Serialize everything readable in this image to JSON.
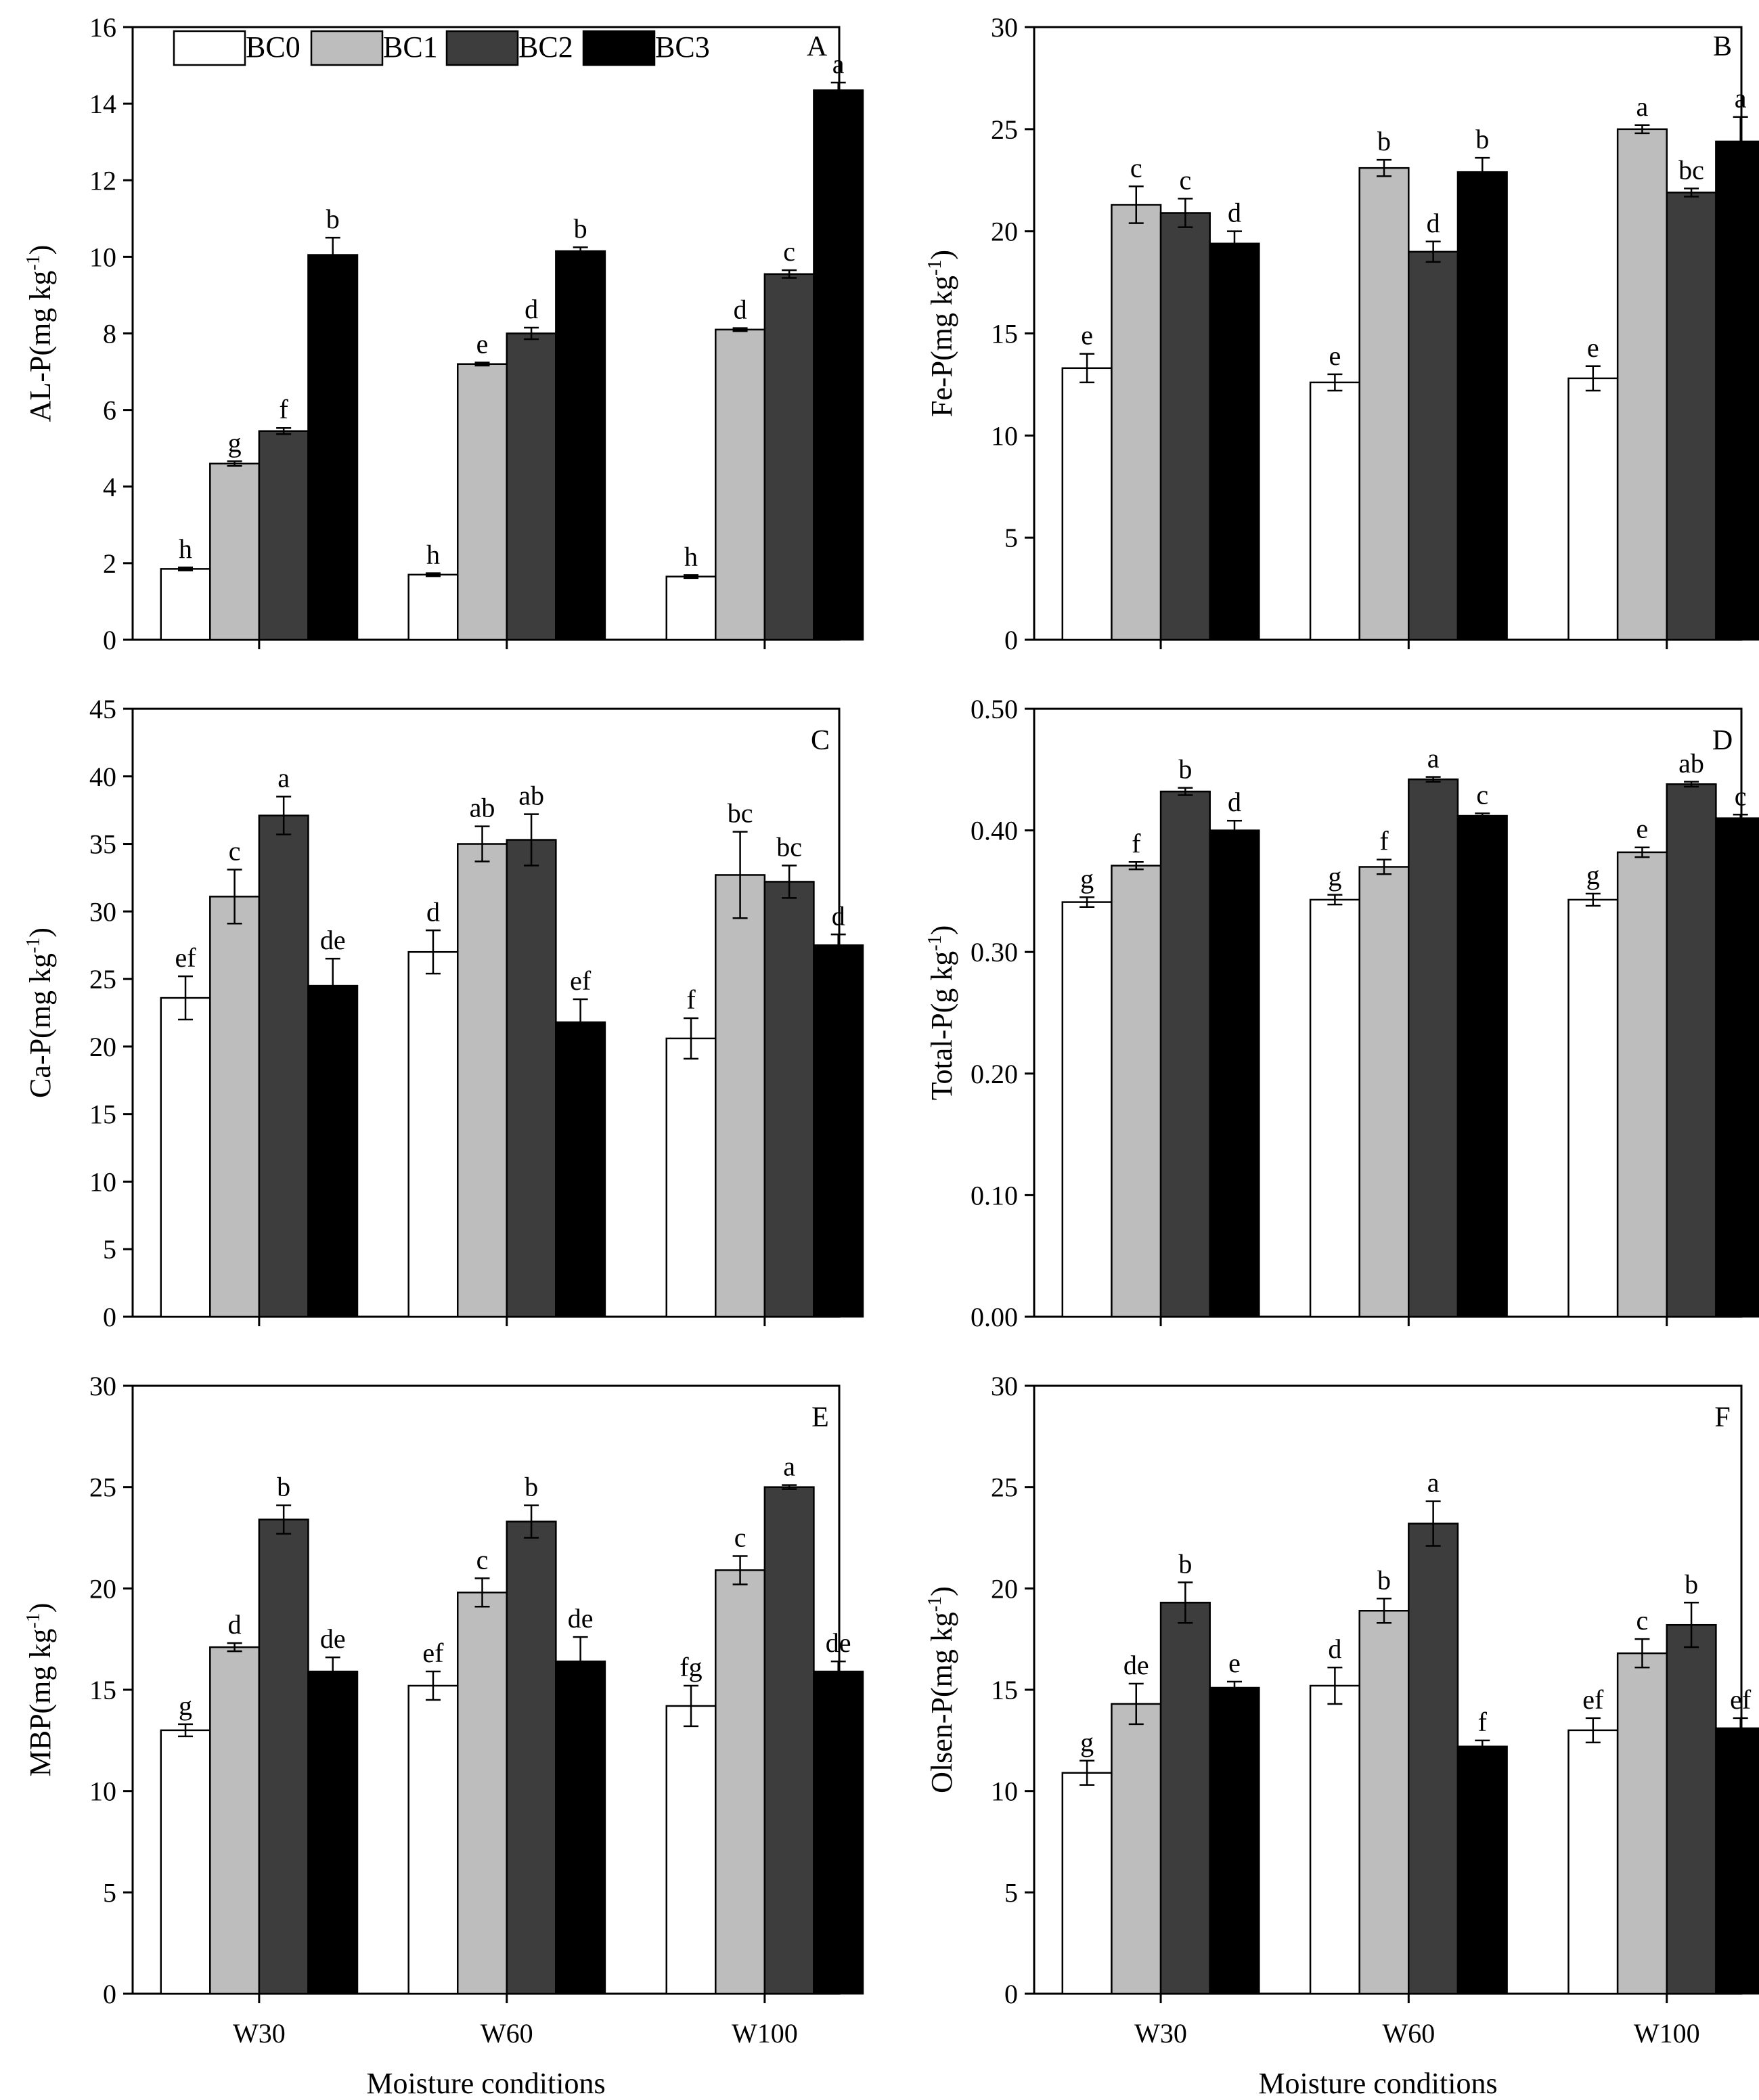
{
  "figure_title": "",
  "colors": {
    "BC0": "#ffffff",
    "BC1": "#bdbdbd",
    "BC2": "#3d3d3d",
    "BC3": "#000000",
    "axis": "#000000"
  },
  "legend": {
    "items": [
      "BC0",
      "BC1",
      "BC2",
      "BC3"
    ]
  },
  "xlabel": "Moisture conditions",
  "chart_data": [
    {
      "type": "bar",
      "panel": "A",
      "title": "A",
      "ylabel": "AL-P(mg kg-1)",
      "categories": [
        "W30",
        "W60",
        "W100"
      ],
      "ylim": [
        0,
        16
      ],
      "yticks": [
        "0",
        "2",
        "4",
        "6",
        "8",
        "10",
        "12",
        "14",
        "16"
      ],
      "series": [
        {
          "name": "BC0",
          "values": [
            1.85,
            1.7,
            1.65
          ],
          "errors": [
            0.04,
            0.04,
            0.04
          ],
          "letters": [
            "h",
            "h",
            "h"
          ]
        },
        {
          "name": "BC1",
          "values": [
            4.6,
            7.2,
            8.1
          ],
          "errors": [
            0.06,
            0.04,
            0.04
          ],
          "letters": [
            "g",
            "e",
            "d"
          ]
        },
        {
          "name": "BC2",
          "values": [
            5.45,
            8.0,
            9.55
          ],
          "errors": [
            0.08,
            0.15,
            0.1
          ],
          "letters": [
            "f",
            "d",
            "c"
          ]
        },
        {
          "name": "BC3",
          "values": [
            10.05,
            10.15,
            14.35
          ],
          "errors": [
            0.45,
            0.1,
            0.2
          ],
          "letters": [
            "b",
            "b",
            "a"
          ]
        }
      ]
    },
    {
      "type": "bar",
      "panel": "B",
      "title": "B",
      "ylabel": "Fe-P(mg kg-1)",
      "categories": [
        "W30",
        "W60",
        "W100"
      ],
      "ylim": [
        0,
        30
      ],
      "yticks": [
        "0",
        "5",
        "10",
        "15",
        "20",
        "25",
        "30"
      ],
      "series": [
        {
          "name": "BC0",
          "values": [
            13.3,
            12.6,
            12.8
          ],
          "errors": [
            0.7,
            0.4,
            0.6
          ],
          "letters": [
            "e",
            "e",
            "e"
          ]
        },
        {
          "name": "BC1",
          "values": [
            21.3,
            23.1,
            25.0
          ],
          "errors": [
            0.9,
            0.4,
            0.2
          ],
          "letters": [
            "c",
            "b",
            "a"
          ]
        },
        {
          "name": "BC2",
          "values": [
            20.9,
            19.0,
            21.9
          ],
          "errors": [
            0.7,
            0.5,
            0.2
          ],
          "letters": [
            "c",
            "d",
            "bc"
          ]
        },
        {
          "name": "BC3",
          "values": [
            19.4,
            22.9,
            24.4
          ],
          "errors": [
            0.6,
            0.7,
            1.2
          ],
          "letters": [
            "d",
            "b",
            "a"
          ]
        }
      ]
    },
    {
      "type": "bar",
      "panel": "C",
      "title": "C",
      "ylabel": "Ca-P(mg kg-1)",
      "categories": [
        "W30",
        "W60",
        "W100"
      ],
      "ylim": [
        0,
        45
      ],
      "yticks": [
        "0",
        "5",
        "10",
        "15",
        "20",
        "25",
        "30",
        "35",
        "40",
        "45"
      ],
      "series": [
        {
          "name": "BC0",
          "values": [
            23.6,
            27.0,
            20.6
          ],
          "errors": [
            1.6,
            1.6,
            1.5
          ],
          "letters": [
            "ef",
            "d",
            "f"
          ]
        },
        {
          "name": "BC1",
          "values": [
            31.1,
            35.0,
            32.7
          ],
          "errors": [
            2.0,
            1.3,
            3.2
          ],
          "letters": [
            "c",
            "ab",
            "bc"
          ]
        },
        {
          "name": "BC2",
          "values": [
            37.1,
            35.3,
            32.2
          ],
          "errors": [
            1.4,
            1.9,
            1.2
          ],
          "letters": [
            "a",
            "ab",
            "bc"
          ]
        },
        {
          "name": "BC3",
          "values": [
            24.5,
            21.8,
            27.5
          ],
          "errors": [
            2.0,
            1.7,
            0.8
          ],
          "letters": [
            "de",
            "ef",
            "d"
          ]
        }
      ]
    },
    {
      "type": "bar",
      "panel": "D",
      "title": "D",
      "ylabel": "Total-P(g kg-1)",
      "categories": [
        "W30",
        "W60",
        "W100"
      ],
      "ylim": [
        0,
        0.5
      ],
      "yticks": [
        "0.00",
        "0.10",
        "0.20",
        "0.30",
        "0.40",
        "0.50"
      ],
      "series": [
        {
          "name": "BC0",
          "values": [
            0.341,
            0.343,
            0.343
          ],
          "errors": [
            0.004,
            0.004,
            0.005
          ],
          "letters": [
            "g",
            "g",
            "g"
          ]
        },
        {
          "name": "BC1",
          "values": [
            0.371,
            0.37,
            0.382
          ],
          "errors": [
            0.003,
            0.006,
            0.004
          ],
          "letters": [
            "f",
            "f",
            "e"
          ]
        },
        {
          "name": "BC2",
          "values": [
            0.432,
            0.442,
            0.438
          ],
          "errors": [
            0.003,
            0.002,
            0.002
          ],
          "letters": [
            "b",
            "a",
            "ab"
          ]
        },
        {
          "name": "BC3",
          "values": [
            0.4,
            0.412,
            0.41
          ],
          "errors": [
            0.008,
            0.002,
            0.003
          ],
          "letters": [
            "d",
            "c",
            "c"
          ]
        }
      ]
    },
    {
      "type": "bar",
      "panel": "E",
      "title": "E",
      "ylabel": "MBP(mg kg-1)",
      "categories": [
        "W30",
        "W60",
        "W100"
      ],
      "ylim": [
        0,
        30
      ],
      "yticks": [
        "0",
        "5",
        "10",
        "15",
        "20",
        "25",
        "30"
      ],
      "series": [
        {
          "name": "BC0",
          "values": [
            13.0,
            15.2,
            14.2
          ],
          "errors": [
            0.3,
            0.7,
            1.0
          ],
          "letters": [
            "g",
            "ef",
            "fg"
          ]
        },
        {
          "name": "BC1",
          "values": [
            17.1,
            19.8,
            20.9
          ],
          "errors": [
            0.2,
            0.7,
            0.7
          ],
          "letters": [
            "d",
            "c",
            "c"
          ]
        },
        {
          "name": "BC2",
          "values": [
            23.4,
            23.3,
            25.0
          ],
          "errors": [
            0.7,
            0.8,
            0.1
          ],
          "letters": [
            "b",
            "b",
            "a"
          ]
        },
        {
          "name": "BC3",
          "values": [
            15.9,
            16.4,
            15.9
          ],
          "errors": [
            0.7,
            1.2,
            0.5
          ],
          "letters": [
            "de",
            "de",
            "de"
          ]
        }
      ]
    },
    {
      "type": "bar",
      "panel": "F",
      "title": "F",
      "ylabel": "Olsen-P(mg kg-1)",
      "categories": [
        "W30",
        "W60",
        "W100"
      ],
      "ylim": [
        0,
        30
      ],
      "yticks": [
        "0",
        "5",
        "10",
        "15",
        "20",
        "25",
        "30"
      ],
      "series": [
        {
          "name": "BC0",
          "values": [
            10.9,
            15.2,
            13.0
          ],
          "errors": [
            0.6,
            0.9,
            0.6
          ],
          "letters": [
            "g",
            "d",
            "ef"
          ]
        },
        {
          "name": "BC1",
          "values": [
            14.3,
            18.9,
            16.8
          ],
          "errors": [
            1.0,
            0.6,
            0.7
          ],
          "letters": [
            "de",
            "b",
            "c"
          ]
        },
        {
          "name": "BC2",
          "values": [
            19.3,
            23.2,
            18.2
          ],
          "errors": [
            1.0,
            1.1,
            1.1
          ],
          "letters": [
            "b",
            "a",
            "b"
          ]
        },
        {
          "name": "BC3",
          "values": [
            15.1,
            12.2,
            13.1
          ],
          "errors": [
            0.3,
            0.3,
            0.5
          ],
          "letters": [
            "e",
            "f",
            "ef"
          ]
        }
      ]
    }
  ]
}
